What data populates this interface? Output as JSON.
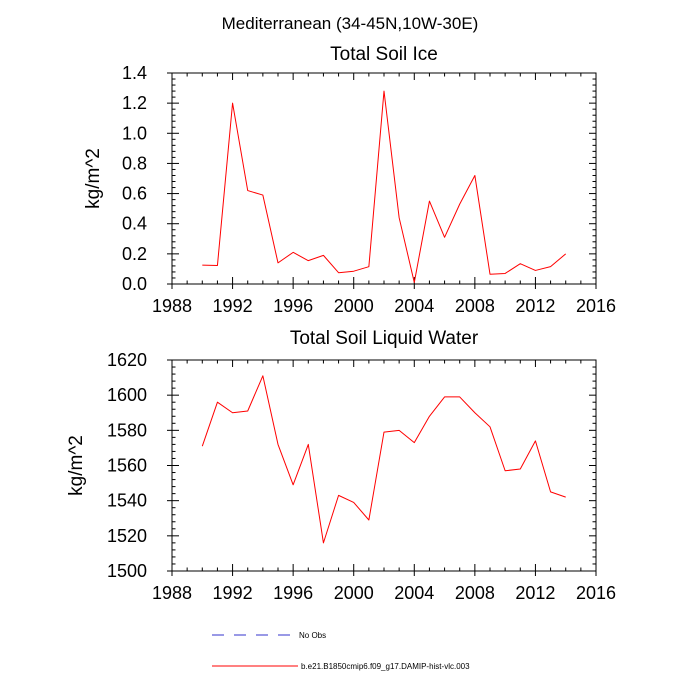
{
  "page_title": "Mediterranean (34-45N,10W-30E)",
  "chart_data": [
    {
      "type": "line",
      "title": "Total Soil Ice",
      "xlabel": "",
      "ylabel": "kg/m^2",
      "xlim": [
        1988,
        2016
      ],
      "ylim": [
        0.0,
        1.4
      ],
      "xticks": [
        1988,
        1992,
        1996,
        2000,
        2004,
        2008,
        2012,
        2016
      ],
      "xtick_labels": [
        "1988",
        "1992",
        "1996",
        "2000",
        "2004",
        "2008",
        "2012",
        "2016"
      ],
      "yticks": [
        0.0,
        0.2,
        0.4,
        0.6,
        0.8,
        1.0,
        1.2,
        1.4
      ],
      "ytick_labels": [
        "0.0",
        "0.2",
        "0.4",
        "0.6",
        "0.8",
        "1.0",
        "1.2",
        "1.4"
      ],
      "x": [
        1990,
        1991,
        1992,
        1993,
        1994,
        1995,
        1996,
        1997,
        1998,
        1999,
        2000,
        2001,
        2002,
        2003,
        2004,
        2005,
        2006,
        2007,
        2008,
        2009,
        2010,
        2011,
        2012,
        2013,
        2014
      ],
      "series": [
        {
          "color": "#ff0000",
          "values": [
            0.125,
            0.123,
            1.2,
            0.62,
            0.59,
            0.14,
            0.21,
            0.155,
            0.19,
            0.075,
            0.085,
            0.115,
            1.28,
            0.44,
            0.01,
            0.55,
            0.31,
            0.53,
            0.72,
            0.065,
            0.07,
            0.135,
            0.09,
            0.115,
            0.2
          ]
        }
      ]
    },
    {
      "type": "line",
      "title": "Total Soil Liquid Water",
      "xlabel": "",
      "ylabel": "kg/m^2",
      "xlim": [
        1988,
        2016
      ],
      "ylim": [
        1500,
        1620
      ],
      "xticks": [
        1988,
        1992,
        1996,
        2000,
        2004,
        2008,
        2012,
        2016
      ],
      "xtick_labels": [
        "1988",
        "1992",
        "1996",
        "2000",
        "2004",
        "2008",
        "2012",
        "2016"
      ],
      "yticks": [
        1500,
        1520,
        1540,
        1560,
        1580,
        1600,
        1620
      ],
      "ytick_labels": [
        "1500",
        "1520",
        "1540",
        "1560",
        "1580",
        "1600",
        "1620"
      ],
      "x": [
        1990,
        1991,
        1992,
        1993,
        1994,
        1995,
        1996,
        1997,
        1998,
        1999,
        2000,
        2001,
        2002,
        2003,
        2004,
        2005,
        2006,
        2007,
        2008,
        2009,
        2010,
        2011,
        2012,
        2013,
        2014
      ],
      "series": [
        {
          "color": "#ff0000",
          "values": [
            1571,
            1596,
            1590,
            1591,
            1611,
            1572,
            1549,
            1572,
            1516,
            1543,
            1539,
            1529,
            1579,
            1580,
            1573,
            1588,
            1599,
            1599,
            1590,
            1582,
            1557,
            1558,
            1574,
            1545,
            1542
          ]
        }
      ]
    }
  ],
  "legend": {
    "items": [
      {
        "label": "No Obs",
        "color": "#3333cc",
        "style": "dashed"
      },
      {
        "label": "b.e21.B1850cmip6.f09_g17.DAMIP-hist-vlc.003",
        "color": "#ff0000",
        "style": "solid"
      }
    ]
  }
}
